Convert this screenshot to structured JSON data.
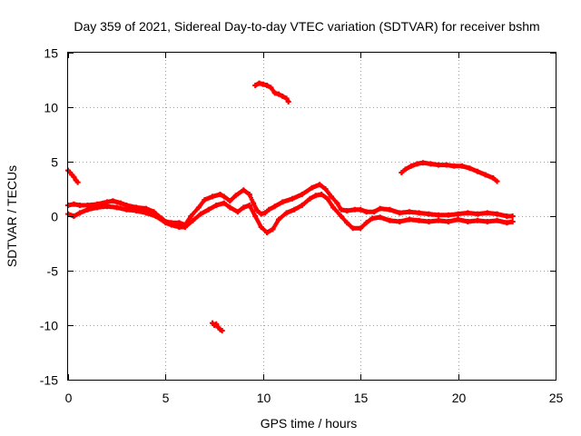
{
  "chart_data": {
    "type": "scatter",
    "title": "Day 359 of 2021, Sidereal Day-to-day VTEC variation (SDTVAR) for receiver bshm",
    "xlabel": "GPS time / hours",
    "ylabel": "SDTVAR / TECUs",
    "xlim": [
      0,
      25
    ],
    "ylim": [
      -15,
      15
    ],
    "xticks": [
      0,
      5,
      10,
      15,
      20,
      25
    ],
    "yticks": [
      -15,
      -10,
      -5,
      0,
      5,
      10,
      15
    ],
    "grid": true,
    "marker": "+",
    "color": "#ff0000",
    "series": [
      {
        "name": "main-band-upper",
        "x": [
          0.0,
          0.3,
          0.6,
          1.0,
          1.5,
          2.0,
          2.3,
          2.7,
          3.0,
          3.5,
          4.0,
          4.4,
          4.8,
          5.0,
          5.3,
          5.7,
          6.0,
          6.3,
          6.7,
          7.0,
          7.4,
          7.8,
          8.0,
          8.3,
          8.6,
          9.0,
          9.3,
          9.5,
          9.7,
          9.9,
          10.1,
          10.3,
          10.6,
          11.0,
          11.5,
          12.0,
          12.5,
          12.9,
          13.2,
          13.5,
          13.8,
          14.0,
          14.3,
          14.7,
          15.0,
          15.3,
          15.7,
          16.0,
          16.5,
          17.0,
          17.5,
          18.0,
          18.5,
          19.0,
          19.5,
          20.0,
          20.5,
          21.0,
          21.5,
          22.0,
          22.5,
          22.8
        ],
        "y": [
          1.0,
          1.1,
          1.0,
          1.0,
          1.1,
          1.3,
          1.4,
          1.2,
          1.0,
          0.8,
          0.7,
          0.4,
          -0.2,
          -0.5,
          -0.6,
          -0.6,
          -0.8,
          0.0,
          0.8,
          1.5,
          1.8,
          2.0,
          1.8,
          1.4,
          1.9,
          2.4,
          2.0,
          1.2,
          0.5,
          0.2,
          0.3,
          0.6,
          0.9,
          1.3,
          1.6,
          2.0,
          2.6,
          2.9,
          2.5,
          1.8,
          1.2,
          0.6,
          0.5,
          0.6,
          0.6,
          0.4,
          0.4,
          0.7,
          0.6,
          0.3,
          0.4,
          0.3,
          0.2,
          0.1,
          0.1,
          0.2,
          0.3,
          0.2,
          0.3,
          0.2,
          0.0,
          0.0
        ]
      },
      {
        "name": "main-band-lower",
        "x": [
          0.0,
          0.3,
          0.6,
          1.0,
          1.5,
          2.0,
          2.5,
          3.0,
          3.5,
          4.0,
          4.5,
          5.0,
          5.3,
          5.7,
          6.0,
          6.4,
          6.8,
          7.2,
          7.6,
          8.0,
          8.3,
          8.7,
          9.0,
          9.3,
          9.6,
          9.9,
          10.2,
          10.5,
          10.8,
          11.2,
          11.6,
          12.0,
          12.4,
          12.7,
          13.0,
          13.3,
          13.6,
          14.0,
          14.3,
          14.6,
          15.0,
          15.3,
          15.6,
          16.0,
          16.5,
          17.0,
          17.5,
          18.0,
          18.5,
          19.0,
          19.5,
          20.0,
          20.5,
          21.0,
          21.5,
          22.0,
          22.5,
          22.8
        ],
        "y": [
          0.2,
          0.0,
          0.3,
          0.6,
          0.8,
          0.9,
          0.8,
          0.6,
          0.5,
          0.3,
          0.0,
          -0.6,
          -0.8,
          -1.0,
          -1.0,
          -0.4,
          0.2,
          0.6,
          1.0,
          1.2,
          0.8,
          0.4,
          0.8,
          1.0,
          0.0,
          -1.0,
          -1.5,
          -1.2,
          -0.3,
          0.3,
          0.6,
          1.0,
          1.6,
          1.9,
          2.0,
          1.6,
          0.8,
          0.0,
          -0.6,
          -1.1,
          -1.1,
          -0.6,
          -0.2,
          -0.1,
          -0.4,
          -0.5,
          -0.3,
          -0.4,
          -0.5,
          -0.4,
          -0.5,
          -0.3,
          -0.5,
          -0.4,
          -0.5,
          -0.4,
          -0.6,
          -0.5
        ]
      },
      {
        "name": "arc-start",
        "x": [
          0.0,
          0.1,
          0.2,
          0.3,
          0.4,
          0.5
        ],
        "y": [
          4.2,
          4.0,
          3.8,
          3.6,
          3.3,
          3.1
        ]
      },
      {
        "name": "arc-high",
        "x": [
          9.6,
          9.8,
          10.0,
          10.2,
          10.4,
          10.6,
          10.8,
          11.0,
          11.2,
          11.3
        ],
        "y": [
          12.0,
          12.2,
          12.1,
          12.0,
          11.8,
          11.3,
          11.2,
          11.0,
          10.8,
          10.5
        ]
      },
      {
        "name": "arc-low",
        "x": [
          7.4,
          7.5,
          7.6,
          7.7,
          7.8,
          7.9
        ],
        "y": [
          -9.8,
          -10.0,
          -9.9,
          -10.2,
          -10.4,
          -10.5
        ]
      },
      {
        "name": "arc-late",
        "x": [
          17.1,
          17.3,
          17.6,
          17.9,
          18.2,
          18.6,
          19.0,
          19.4,
          19.8,
          20.2,
          20.6,
          21.0,
          21.4,
          21.8,
          22.0
        ],
        "y": [
          4.0,
          4.3,
          4.6,
          4.8,
          4.9,
          4.8,
          4.7,
          4.7,
          4.6,
          4.6,
          4.4,
          4.1,
          3.8,
          3.5,
          3.2
        ]
      }
    ]
  }
}
